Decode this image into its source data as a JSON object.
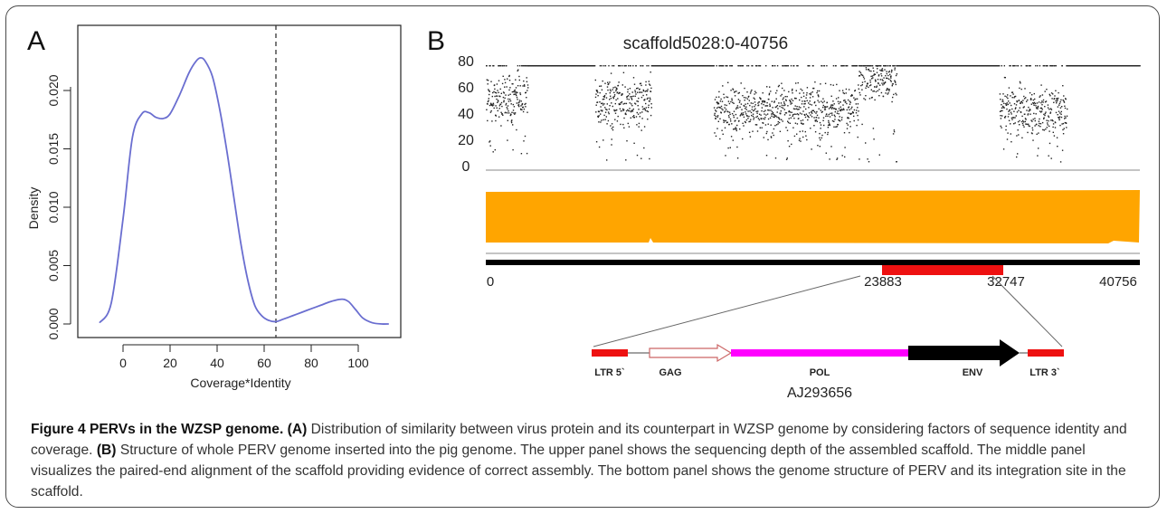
{
  "figure": {
    "caption_title": "Figure 4 PERVs in the WZSP genome.",
    "caption_a_label": "(A)",
    "caption_a_text": "Distribution of similarity between virus protein and its counterpart in WZSP genome by considering factors of sequence identity and coverage.",
    "caption_b_label": "(B)",
    "caption_b_text": "Structure of whole PERV genome inserted into the pig genome. The upper panel shows the sequencing depth of the assembled scaffold. The middle panel visualizes the paired-end alignment of the scaffold providing evidence of correct assembly. The bottom panel shows the genome structure of PERV and its integration site in the scaffold."
  },
  "panel_a": {
    "label": "A",
    "chart_data": {
      "type": "line",
      "xlabel": "Coverage*Identity",
      "ylabel": "Density",
      "xlim": [
        -13,
        115
      ],
      "ylim": [
        0,
        0.0228
      ],
      "x_ticks": [
        "0",
        "20",
        "40",
        "60",
        "80",
        "100"
      ],
      "y_ticks": [
        "0.000",
        "0.005",
        "0.010",
        "0.015",
        "0.020"
      ],
      "cutoff_line_x": 65,
      "series": [
        {
          "x": [
            -10,
            -5,
            0,
            4,
            8,
            11,
            14,
            17,
            20,
            24,
            28,
            31,
            33,
            35,
            38,
            41,
            44,
            47,
            50,
            53,
            56,
            59,
            62,
            65,
            68,
            72,
            76,
            80,
            84,
            88,
            92,
            94,
            96,
            99,
            102,
            106,
            110,
            113
          ],
          "y": [
            0.0001,
            0.0018,
            0.009,
            0.016,
            0.018,
            0.0181,
            0.0177,
            0.0176,
            0.018,
            0.0196,
            0.0215,
            0.0225,
            0.0228,
            0.0225,
            0.0212,
            0.0185,
            0.015,
            0.011,
            0.007,
            0.0038,
            0.0016,
            0.0007,
            0.0003,
            0.0002,
            0.0004,
            0.0007,
            0.001,
            0.0013,
            0.0016,
            0.0019,
            0.0021,
            0.0021,
            0.0019,
            0.0012,
            0.0005,
            0.0001,
            0.0,
            0.0
          ]
        }
      ]
    }
  },
  "panel_b": {
    "label": "B",
    "title": "scaffold5028:0-40756",
    "depth_y_ticks": [
      "80",
      "60",
      "40",
      "20",
      "0"
    ],
    "scaffold_positions": [
      "0",
      "23883",
      "32747",
      "40756"
    ],
    "scaffold_length": 40756,
    "insert_start": 23883,
    "insert_end": 32747,
    "depth_chart": {
      "type": "scatter",
      "ylim": [
        0,
        80
      ],
      "saturation_value": 80,
      "segments": [
        {
          "from": 0,
          "to": 2600,
          "mode": "noisy",
          "mean": 55
        },
        {
          "from": 2600,
          "to": 6800,
          "mode": "flat"
        },
        {
          "from": 6800,
          "to": 10300,
          "mode": "noisy",
          "mean": 52
        },
        {
          "from": 10300,
          "to": 14200,
          "mode": "flat"
        },
        {
          "from": 14200,
          "to": 23200,
          "mode": "noisy",
          "mean": 46
        },
        {
          "from": 23200,
          "to": 25600,
          "mode": "noisy",
          "mean": 70
        },
        {
          "from": 25600,
          "to": 32000,
          "mode": "flat"
        },
        {
          "from": 32000,
          "to": 36200,
          "mode": "noisy",
          "mean": 46
        },
        {
          "from": 36200,
          "to": 40756,
          "mode": "flat"
        }
      ]
    },
    "alignment_color": "#FFA500",
    "genes": [
      {
        "name": "LTR 5`",
        "color": "#EE1111"
      },
      {
        "name": "GAG",
        "color": "#FFFFFF"
      },
      {
        "name": "POL",
        "color": "#FF00FF"
      },
      {
        "name": "ENV",
        "color": "#000000"
      },
      {
        "name": "LTR 3`",
        "color": "#EE1111"
      }
    ],
    "accession": "AJ293656"
  }
}
